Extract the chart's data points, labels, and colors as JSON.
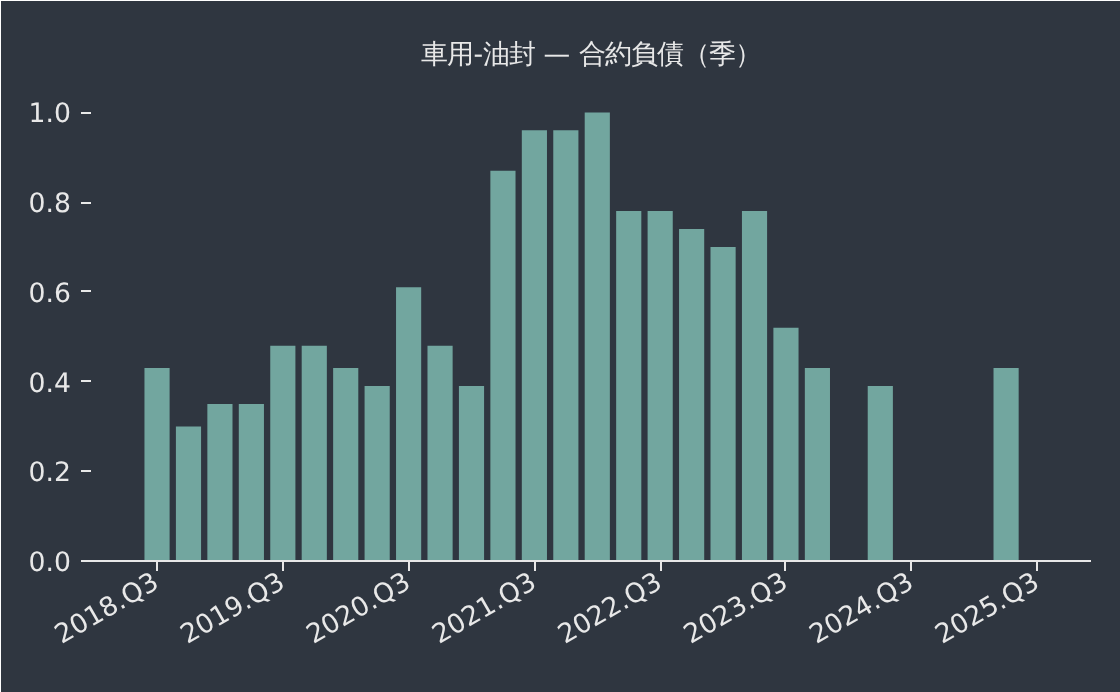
{
  "chart_data": {
    "type": "bar",
    "title": "車用-油封 — 合約負債（季）",
    "categories": [
      "2018.Q3",
      null,
      null,
      null,
      "2019.Q3",
      null,
      null,
      null,
      "2020.Q3",
      null,
      null,
      null,
      "2021.Q3",
      null,
      null,
      null,
      "2022.Q3",
      null,
      null,
      null,
      "2023.Q3",
      null,
      null,
      null,
      "2024.Q3",
      null,
      null,
      null,
      "2025.Q3"
    ],
    "values": [
      0.43,
      0.3,
      0.35,
      0.35,
      0.48,
      0.48,
      0.43,
      0.39,
      0.61,
      0.48,
      0.39,
      0.87,
      0.96,
      0.96,
      1.0,
      0.78,
      0.78,
      0.74,
      0.7,
      0.78,
      0.52,
      0.43,
      null,
      0.39,
      null,
      null,
      null,
      0.43,
      null
    ],
    "color": "#72a69f",
    "ylim": [
      0,
      1.07
    ],
    "yticks": [
      {
        "value": 0,
        "label": "0.0"
      },
      0.2,
      0.4,
      0.6,
      0.8,
      {
        "value": 1,
        "label": "1.0"
      }
    ],
    "grid": false
  }
}
